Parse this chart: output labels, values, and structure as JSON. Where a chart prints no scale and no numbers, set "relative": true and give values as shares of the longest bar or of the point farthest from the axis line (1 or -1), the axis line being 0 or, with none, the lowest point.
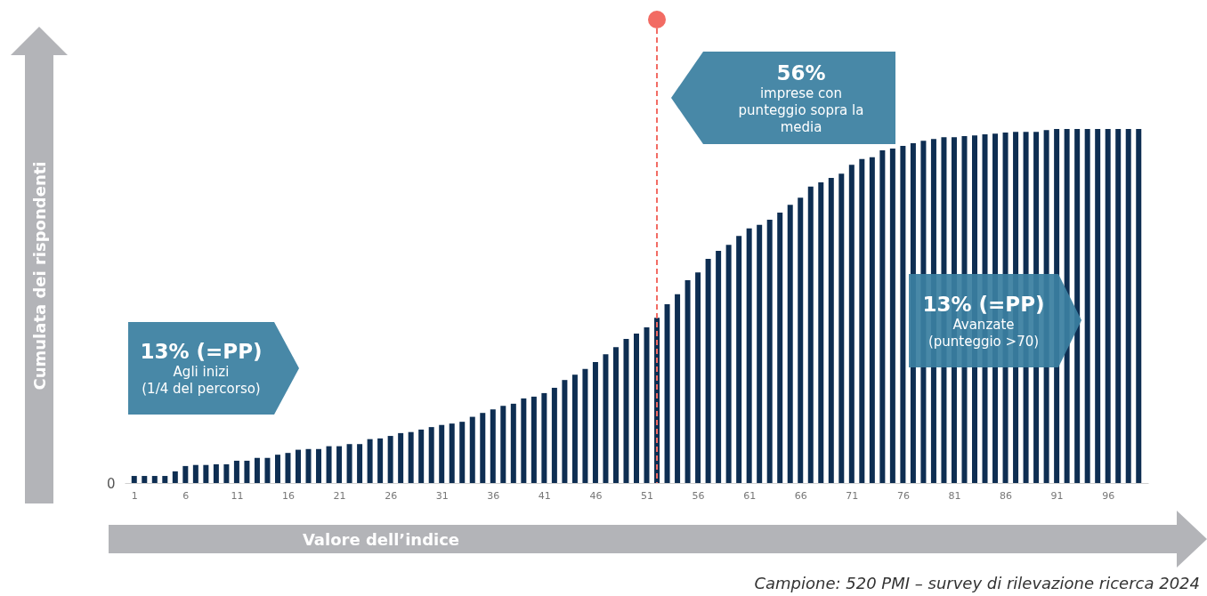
{
  "chart_data": {
    "type": "bar",
    "relative": true,
    "color": "#0e2e52",
    "xlabel": "Valore dell’indice",
    "ylabel": "Cumulata dei rispondenti",
    "x": [
      1,
      2,
      3,
      4,
      5,
      6,
      7,
      8,
      9,
      10,
      11,
      12,
      13,
      14,
      15,
      16,
      17,
      18,
      19,
      20,
      21,
      22,
      23,
      24,
      25,
      26,
      27,
      28,
      29,
      30,
      31,
      32,
      33,
      34,
      35,
      36,
      37,
      38,
      39,
      40,
      41,
      42,
      43,
      44,
      45,
      46,
      47,
      48,
      49,
      50,
      51,
      52,
      53,
      54,
      55,
      56,
      57,
      58,
      59,
      60,
      61,
      62,
      63,
      64,
      65,
      66,
      67,
      68,
      69,
      70,
      71,
      72,
      73,
      74,
      75,
      76,
      77,
      78,
      79,
      80,
      81,
      82,
      83,
      84,
      85,
      86,
      87,
      88,
      89,
      90,
      91,
      92,
      93,
      94,
      95,
      96,
      97,
      98,
      99
    ],
    "values": [
      0.02,
      0.02,
      0.02,
      0.02,
      0.033,
      0.048,
      0.051,
      0.051,
      0.053,
      0.053,
      0.063,
      0.063,
      0.071,
      0.071,
      0.08,
      0.085,
      0.094,
      0.096,
      0.096,
      0.104,
      0.104,
      0.11,
      0.11,
      0.124,
      0.126,
      0.133,
      0.141,
      0.144,
      0.151,
      0.158,
      0.164,
      0.168,
      0.173,
      0.187,
      0.198,
      0.208,
      0.218,
      0.224,
      0.239,
      0.244,
      0.254,
      0.269,
      0.291,
      0.306,
      0.322,
      0.342,
      0.364,
      0.384,
      0.407,
      0.422,
      0.44,
      0.467,
      0.505,
      0.533,
      0.573,
      0.595,
      0.633,
      0.656,
      0.673,
      0.698,
      0.719,
      0.729,
      0.744,
      0.764,
      0.786,
      0.806,
      0.837,
      0.849,
      0.862,
      0.874,
      0.899,
      0.915,
      0.92,
      0.94,
      0.945,
      0.952,
      0.96,
      0.967,
      0.972,
      0.977,
      0.977,
      0.98,
      0.982,
      0.985,
      0.987,
      0.99,
      0.992,
      0.992,
      0.992,
      0.997,
      1,
      1,
      1,
      1,
      1,
      1,
      1,
      1,
      1
    ],
    "xlim": [
      0.5,
      99.5
    ],
    "xticks": [
      1,
      6,
      11,
      16,
      21,
      26,
      31,
      36,
      41,
      46,
      51,
      56,
      61,
      66,
      71,
      76,
      81,
      86,
      91,
      96
    ],
    "ref_lines": [
      {
        "axis": "x",
        "value": 52,
        "color": "#f26b63",
        "line_style": "dashed"
      }
    ],
    "annotations": [
      "13% (=PP)\nAgli inizi\n(1/4 del percorso)",
      "56%\nimprese con\npunteggio sopra la\nmedia",
      "13% (=PP)\nAvanzate\n(punteggio >70)",
      "0",
      "Campione: 520 PMI – survey di rilevazione ricerca 2024"
    ]
  }
}
